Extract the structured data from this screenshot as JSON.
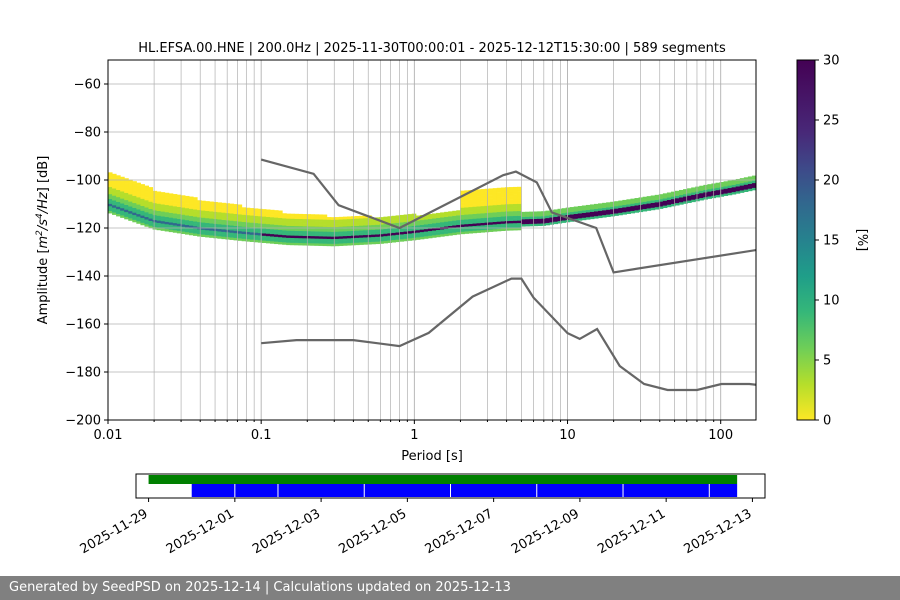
{
  "chart_data": [
    {
      "type": "heatmap",
      "title": "HL.EFSA.00.HNE | 200.0Hz | 2025-11-30T00:00:01 - 2025-12-12T15:30:00 | 589 segments",
      "xlabel": "Period [s]",
      "ylabel_parts": [
        "Amplitude [",
        "m",
        "2",
        "/s",
        "4",
        "/Hz",
        "] [dB]"
      ],
      "xscale": "log",
      "xlim": [
        0.01,
        170
      ],
      "ylim": [
        -200,
        -50
      ],
      "xticks": [
        0.01,
        0.1,
        1,
        10,
        100
      ],
      "xtick_labels": [
        "0.01",
        "0.1",
        "1",
        "10",
        "100"
      ],
      "yticks": [
        -200,
        -180,
        -160,
        -140,
        -120,
        -100,
        -80,
        -60
      ],
      "ytick_labels": [
        "−200",
        "−180",
        "−160",
        "−140",
        "−120",
        "−100",
        "−80",
        "−60"
      ],
      "grid": true,
      "colormap": "viridis_r",
      "colorbar": {
        "label": "[%]",
        "range": [
          0,
          30
        ],
        "ticks": [
          0,
          5,
          10,
          15,
          20,
          25,
          30
        ],
        "tick_labels": [
          "0",
          "5",
          "10",
          "15",
          "20",
          "25",
          "30"
        ]
      },
      "noise_models": [
        {
          "name": "high",
          "x": [
            0.1,
            0.22,
            0.32,
            0.8,
            3.8,
            4.6,
            6.3,
            7.9,
            15.4,
            20,
            354.8
          ],
          "y": [
            -91.5,
            -97.4,
            -110.5,
            -120,
            -98,
            -96.5,
            -101,
            -113.5,
            -120,
            -138.5,
            -126
          ]
        },
        {
          "name": "low",
          "x": [
            0.1,
            0.17,
            0.4,
            0.8,
            1.24,
            2.4,
            4.3,
            5.0,
            6.0,
            10,
            12,
            15.6,
            21.9,
            31.6,
            45,
            70,
            101,
            154,
            328,
            600
          ],
          "y": [
            -168,
            -166.7,
            -166.7,
            -169.2,
            -163.7,
            -148.6,
            -141.1,
            -141.1,
            -149,
            -163.8,
            -166.2,
            -162.1,
            -177.5,
            -185,
            -187.5,
            -187.5,
            -185,
            -185,
            -187.5,
            -187.5
          ]
        }
      ],
      "psd_mode": {
        "x": [
          0.01,
          0.02,
          0.04,
          0.08,
          0.15,
          0.3,
          0.6,
          1,
          2,
          4,
          7,
          10,
          20,
          40,
          80,
          120,
          170
        ],
        "y": [
          -110,
          -117,
          -120,
          -122,
          -123.5,
          -124,
          -123,
          -121.5,
          -119,
          -117.5,
          -117,
          -115.5,
          -113,
          -110,
          -106,
          -104,
          -102
        ]
      }
    },
    {
      "type": "timeline",
      "date_ticks": [
        "2025-11-29",
        "2025-12-01",
        "2025-12-03",
        "2025-12-05",
        "2025-12-07",
        "2025-12-09",
        "2025-12-11",
        "2025-12-13"
      ],
      "range": [
        "2025-11-28T17:00:00",
        "2025-12-13T07:00:00"
      ],
      "available_data": {
        "color": "#008000",
        "start": "2025-11-29T00:00:00",
        "end": "2025-12-12T15:30:00"
      },
      "processed_segments": {
        "color": "#0000ff",
        "start": "2025-11-30T00:00:00",
        "end": "2025-12-12T15:30:00",
        "gaps": [
          "2025-12-01T00:00:00",
          "2025-12-02T00:00:00",
          "2025-12-04T00:00:00",
          "2025-12-06T00:00:00",
          "2025-12-08T00:00:00",
          "2025-12-10T00:00:00",
          "2025-12-12T00:00:00"
        ]
      }
    }
  ],
  "footer": {
    "text": "Generated by SeedPSD on 2025-12-14 | Calculations updated on 2025-12-13"
  }
}
